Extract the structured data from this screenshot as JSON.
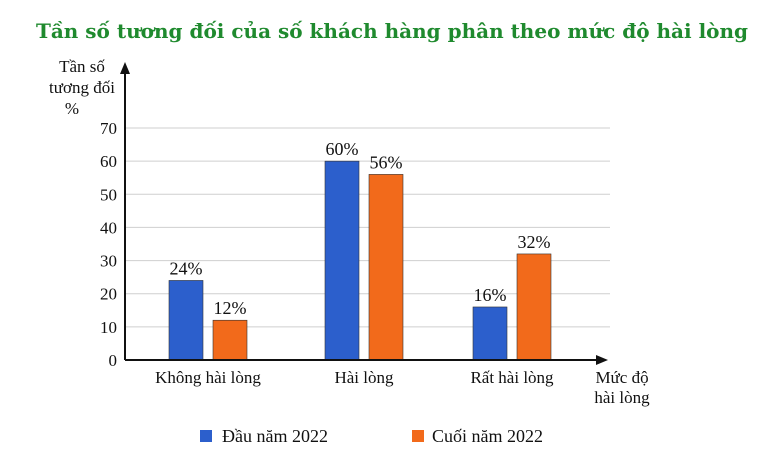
{
  "chart_data": {
    "type": "bar",
    "title": "Tần số tương đối của số khách hàng phân theo mức độ hài lòng",
    "ylabel_lines": [
      "Tần số",
      "tương đối",
      "%"
    ],
    "xlabel_lines": [
      "Mức độ",
      "hài lòng"
    ],
    "categories": [
      "Không hài lòng",
      "Hài lòng",
      "Rất hài lòng"
    ],
    "series": [
      {
        "name": "Đầu năm 2022",
        "values": [
          24,
          60,
          16
        ],
        "labels": [
          "24%",
          "60%",
          "16%"
        ]
      },
      {
        "name": "Cuối năm 2022",
        "values": [
          12,
          56,
          32
        ],
        "labels": [
          "12%",
          "56%",
          "32%"
        ]
      }
    ],
    "yticks": [
      0,
      10,
      20,
      30,
      40,
      50,
      60,
      70
    ],
    "ylim": [
      0,
      70
    ],
    "grid": true,
    "legend": "bottom",
    "colors": {
      "title": "#1f8a2e",
      "series": [
        "#2c5fcc",
        "#f26a1b"
      ],
      "axis": "#111111",
      "grid": "#cfcfcf"
    }
  }
}
